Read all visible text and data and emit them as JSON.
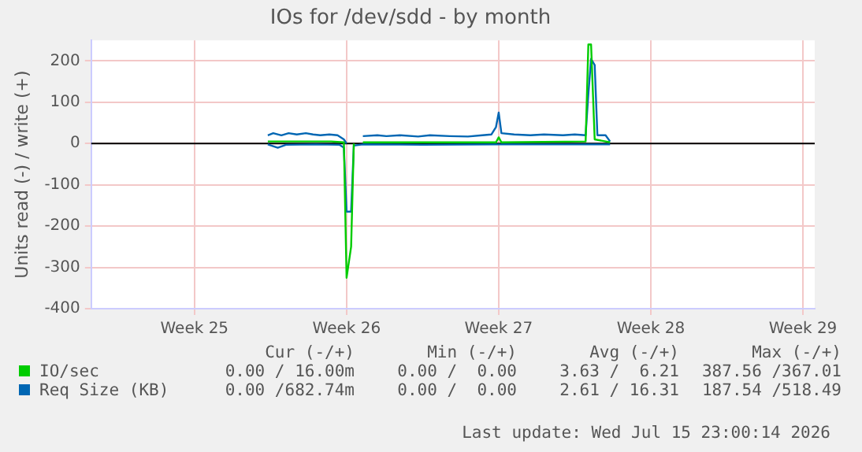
{
  "chart_data": {
    "type": "line",
    "title": "IOs for /dev/sdd - by month",
    "ylabel": "Units read (-) / write (+)",
    "xlim": [
      "2026-06-12T18:00",
      "2026-07-16T01:00"
    ],
    "xticks": [
      {
        "value": "2026-06-17T12:00",
        "label": "Week 25"
      },
      {
        "value": "2026-06-24T12:00",
        "label": "Week 26"
      },
      {
        "value": "2026-07-01T12:00",
        "label": "Week 27"
      },
      {
        "value": "2026-07-08T12:00",
        "label": "Week 28"
      },
      {
        "value": "2026-07-15T12:00",
        "label": "Week 29"
      }
    ],
    "ylim": [
      -400,
      250
    ],
    "yticks": [
      -400,
      -300,
      -200,
      -100,
      0,
      100,
      200
    ],
    "grid": true,
    "legend": "bottom",
    "marker": "none",
    "line_style": "solid",
    "ref_lines": [
      {
        "axis": "y",
        "value": 0,
        "color": "#000000"
      }
    ],
    "series": [
      {
        "name": "IO/sec",
        "color": "#00cc00",
        "x": [
          "2026-06-20T21:00",
          "2026-06-23T19:00",
          "2026-06-24T09:00",
          "2026-06-24T12:00",
          "2026-06-24T17:00",
          "2026-06-24T20:00",
          "2026-06-24T22:00",
          "2026-06-25T06:00",
          "2026-06-28T00:00",
          "2026-07-01T09:00",
          "2026-07-01T12:00",
          "2026-07-01T15:00",
          "2026-07-05T12:00",
          "2026-07-05T15:00",
          "2026-07-05T18:00",
          "2026-07-05T22:00",
          "2026-07-06T15:00"
        ],
        "values": [
          5,
          5,
          3,
          -325,
          -250,
          0,
          null,
          3,
          3,
          3,
          15,
          3,
          5,
          240,
          240,
          10,
          3
        ]
      },
      {
        "name": "Req Size (KB)",
        "color": "#0066b3",
        "x": [
          "2026-06-20T21:00",
          "2026-06-21T03:00",
          "2026-06-21T12:00",
          "2026-06-21T20:00",
          "2026-06-22T05:00",
          "2026-06-22T15:00",
          "2026-06-22T23:00",
          "2026-06-23T07:00",
          "2026-06-23T17:00",
          "2026-06-24T02:00",
          "2026-06-24T09:00",
          "2026-06-24T12:00",
          "2026-06-24T22:00",
          "2026-06-25T06:00",
          "2026-06-25T22:00",
          "2026-06-26T08:00",
          "2026-06-26T23:00",
          "2026-06-27T19:00",
          "2026-06-28T08:00",
          "2026-06-29T06:00",
          "2026-06-30T02:00",
          "2026-06-30T18:00",
          "2026-07-01T04:00",
          "2026-07-01T09:00",
          "2026-07-01T12:00",
          "2026-07-01T15:00",
          "2026-07-02T05:00",
          "2026-07-02T23:00",
          "2026-07-03T14:00",
          "2026-07-04T11:00",
          "2026-07-05T00:00",
          "2026-07-05T12:00",
          "2026-07-05T15:00",
          "2026-07-05T18:00",
          "2026-07-05T22:00",
          "2026-07-06T01:00",
          "2026-07-06T10:00",
          "2026-07-06T15:00"
        ],
        "values": [
          20,
          25,
          20,
          25,
          22,
          25,
          22,
          20,
          22,
          20,
          10,
          0,
          null,
          18,
          20,
          18,
          20,
          17,
          20,
          18,
          17,
          20,
          22,
          40,
          75,
          25,
          22,
          20,
          22,
          20,
          22,
          20,
          120,
          205,
          190,
          20,
          20,
          5
        ]
      },
      {
        "color": "#0066b3",
        "x": [
          "2026-06-20T21:00",
          "2026-06-21T08:00",
          "2026-06-21T17:00",
          "2026-06-23T02:00",
          "2026-06-24T04:00",
          "2026-06-24T09:00",
          "2026-06-24T12:00",
          "2026-06-24T17:00",
          "2026-06-24T20:00",
          "2026-06-25T06:00",
          "2026-06-28T00:00",
          "2026-07-01T12:00",
          "2026-07-06T15:00"
        ],
        "values": [
          -2,
          -10,
          -3,
          -2,
          -3,
          -10,
          -165,
          -165,
          -5,
          -2,
          -3,
          -2,
          -2
        ]
      }
    ],
    "annotations": [
      "Cur (-/+)",
      "Min (-/+)",
      "Avg (-/+)",
      "Max (-/+)",
      "0.00 / 16.00m",
      "0.00 /  0.00",
      "3.63 /  6.21",
      "387.56 /367.01",
      "0.00 /682.74m",
      "0.00 /  0.00",
      "2.61 / 16.31",
      "187.54 /518.49",
      "Last update: Wed Jul 15 23:00:14 2026"
    ]
  }
}
